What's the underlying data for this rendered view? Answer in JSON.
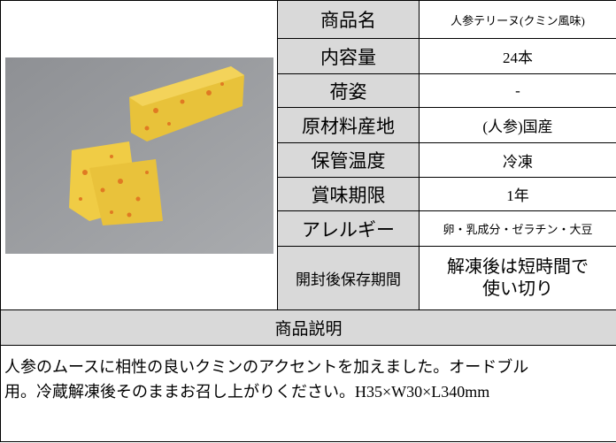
{
  "product_table": {
    "rows": [
      {
        "label": "商品名",
        "value": [
          "人参テリーヌ(クミン風味)"
        ]
      },
      {
        "label": "内容量",
        "value": [
          "24本"
        ]
      },
      {
        "label": "荷姿",
        "value": [
          "-"
        ]
      },
      {
        "label": "原材料産地",
        "value": [
          "(人参)国産"
        ]
      },
      {
        "label": "保管温度",
        "value": [
          "冷凍"
        ]
      },
      {
        "label": "賞味期限",
        "value": [
          "1年"
        ]
      },
      {
        "label": "アレルギー",
        "value": [
          "卵・乳成分・ゼラチン・大豆"
        ]
      },
      {
        "label": "開封後保存期間",
        "value": [
          "解凍後は短時間で",
          "使い切り"
        ]
      }
    ],
    "description_header": "商品説明",
    "description": [
      "人参のムースに相性の良いクミンのアクセントを加えました。オードブル",
      "用。冷蔵解凍後そのままお召し上がりください。H35×W30×L340mm"
    ]
  }
}
